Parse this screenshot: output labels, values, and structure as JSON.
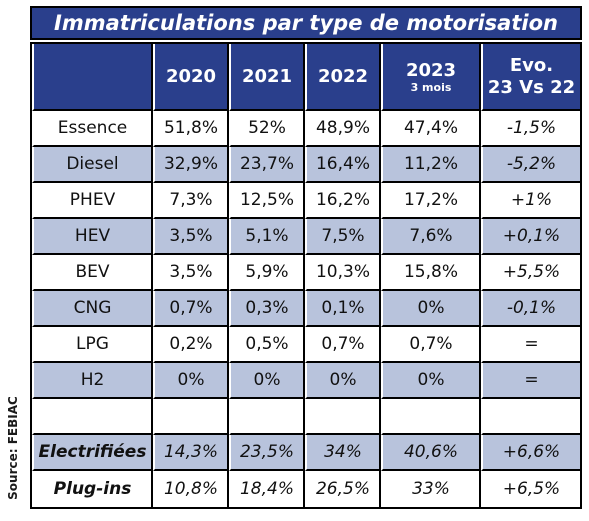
{
  "title": "Immatriculations par type de motorisation",
  "source": "Source: FEBIAC",
  "header": {
    "col0": "",
    "c2020": "2020",
    "c2021": "2021",
    "c2022": "2022",
    "c2023": "2023",
    "c2023_sub": "3 mois",
    "evo_line1": "Evo.",
    "evo_line2": "23 Vs 22"
  },
  "rows": [
    {
      "label": "Essence",
      "v2020": "51,8%",
      "v2021": "52%",
      "v2022": "48,9%",
      "v2023": "47,4%",
      "evo": "-1,5%"
    },
    {
      "label": "Diesel",
      "v2020": "32,9%",
      "v2021": "23,7%",
      "v2022": "16,4%",
      "v2023": "11,2%",
      "evo": "-5,2%"
    },
    {
      "label": "PHEV",
      "v2020": "7,3%",
      "v2021": "12,5%",
      "v2022": "16,2%",
      "v2023": "17,2%",
      "evo": "+1%"
    },
    {
      "label": "HEV",
      "v2020": "3,5%",
      "v2021": "5,1%",
      "v2022": "7,5%",
      "v2023": "7,6%",
      "evo": "+0,1%"
    },
    {
      "label": "BEV",
      "v2020": "3,5%",
      "v2021": "5,9%",
      "v2022": "10,3%",
      "v2023": "15,8%",
      "evo": "+5,5%"
    },
    {
      "label": "CNG",
      "v2020": "0,7%",
      "v2021": "0,3%",
      "v2022": "0,1%",
      "v2023": "0%",
      "evo": "-0,1%"
    },
    {
      "label": "LPG",
      "v2020": "0,2%",
      "v2021": "0,5%",
      "v2022": "0,7%",
      "v2023": "0,7%",
      "evo": "="
    },
    {
      "label": "H2",
      "v2020": "0%",
      "v2021": "0%",
      "v2022": "0%",
      "v2023": "0%",
      "evo": "="
    },
    {
      "label": "",
      "v2020": "",
      "v2021": "",
      "v2022": "",
      "v2023": "",
      "evo": ""
    },
    {
      "label": "Electrifiées",
      "v2020": "14,3%",
      "v2021": "23,5%",
      "v2022": "34%",
      "v2023": "40,6%",
      "evo": "+6,6%"
    },
    {
      "label": "Plug-ins",
      "v2020": "10,8%",
      "v2021": "18,4%",
      "v2022": "26,5%",
      "v2023": "33%",
      "evo": "+6,5%"
    }
  ],
  "colors": {
    "header_bg": "#2a3f8c",
    "stripe": "#b8c3dc"
  }
}
